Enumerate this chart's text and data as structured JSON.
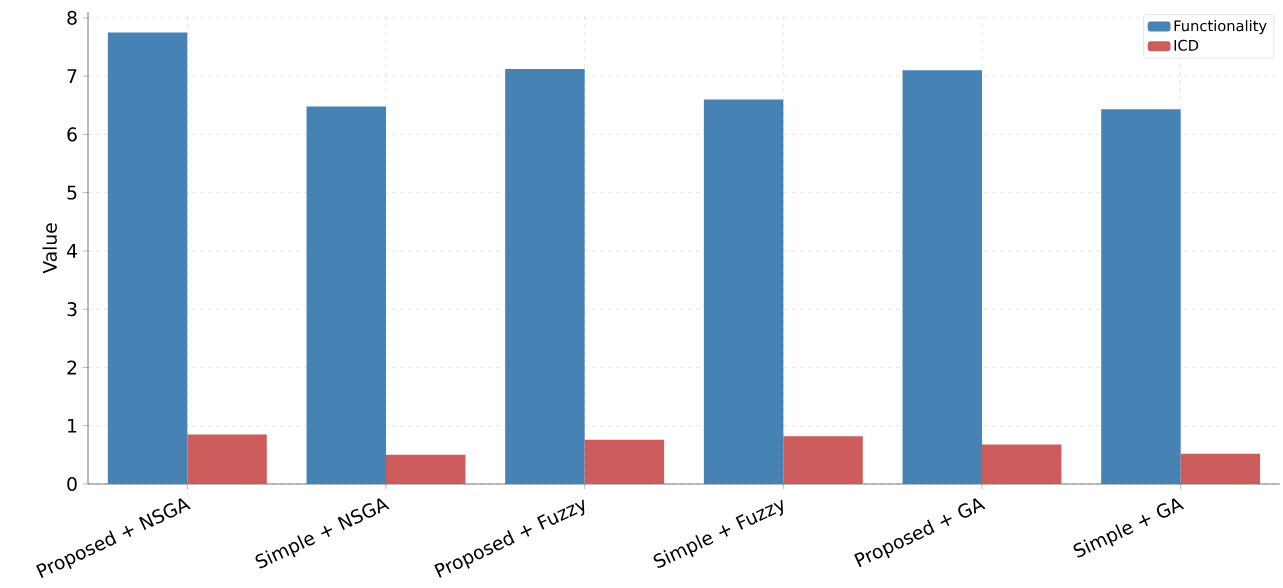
{
  "chart_data": {
    "type": "bar",
    "ylabel": "Value",
    "categories": [
      "Proposed + NSGA",
      "Simple + NSGA",
      "Proposed + Fuzzy",
      "Simple + Fuzzy",
      "Proposed + GA",
      "Simple + GA"
    ],
    "series": [
      {
        "name": "Functionality",
        "color": "#4682b4",
        "values": [
          7.75,
          6.48,
          7.12,
          6.6,
          7.1,
          6.43
        ]
      },
      {
        "name": "ICD",
        "color": "#cd5c5c",
        "values": [
          0.85,
          0.5,
          0.76,
          0.82,
          0.68,
          0.52
        ]
      }
    ],
    "ylim": [
      0,
      8.1
    ],
    "yticks": [
      0,
      1,
      2,
      3,
      4,
      5,
      6,
      7,
      8
    ],
    "grid": true,
    "legend": "top right"
  }
}
